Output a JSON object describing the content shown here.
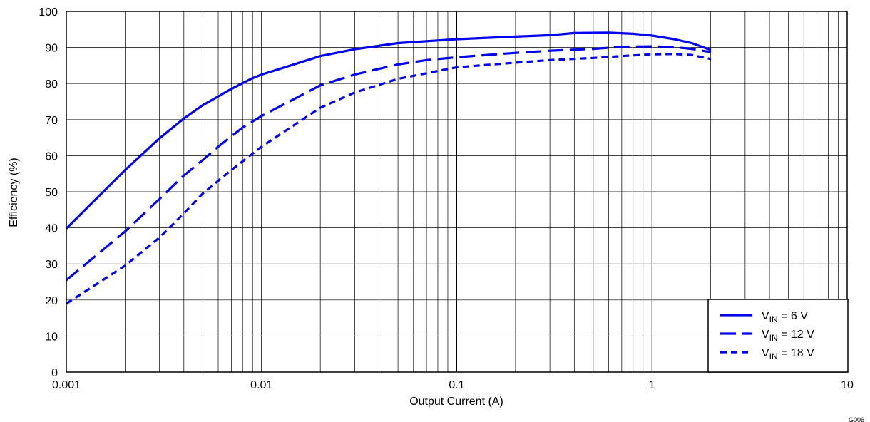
{
  "chart_data": {
    "type": "line",
    "title": "",
    "xlabel": "Output Current (A)",
    "ylabel": "Efficiency (%)",
    "xscale": "log",
    "xlim": [
      0.001,
      10
    ],
    "ylim": [
      0,
      100
    ],
    "grid": true,
    "legend_position": "bottom-right",
    "x_tick_labels": [
      "0.001",
      "0.01",
      "0.1",
      "1",
      "10"
    ],
    "y_tick_labels": [
      "0",
      "10",
      "20",
      "30",
      "40",
      "50",
      "60",
      "70",
      "80",
      "90",
      "100"
    ],
    "line_color": "#0000ee",
    "series": [
      {
        "legend_main": "V",
        "legend_sub": "IN",
        "legend_value": " =  6 V",
        "style": "solid",
        "x": [
          0.001,
          0.002,
          0.003,
          0.004,
          0.005,
          0.007,
          0.009,
          0.01,
          0.02,
          0.03,
          0.05,
          0.1,
          0.2,
          0.3,
          0.4,
          0.6,
          0.8,
          1.0,
          1.3,
          1.6,
          1.8,
          2.0
        ],
        "y": [
          39.8,
          56,
          64.8,
          70.3,
          74,
          78.5,
          81.5,
          82.5,
          87.6,
          89.5,
          91.2,
          92.3,
          93,
          93.4,
          94,
          94.1,
          93.8,
          93.3,
          92.3,
          91.2,
          90.2,
          89.3
        ]
      },
      {
        "legend_main": "V",
        "legend_sub": "IN",
        "legend_value": " =  12 V",
        "style": "long-dash",
        "x": [
          0.001,
          0.002,
          0.003,
          0.004,
          0.005,
          0.006,
          0.008,
          0.01,
          0.02,
          0.03,
          0.05,
          0.07,
          0.1,
          0.2,
          0.3,
          0.5,
          0.7,
          1.0,
          1.3,
          1.6,
          2.0
        ],
        "y": [
          25.5,
          39,
          48,
          54.5,
          58.8,
          62.5,
          67.8,
          71,
          79.5,
          82.5,
          85.3,
          86.5,
          87.3,
          88.5,
          89.1,
          89.6,
          90.2,
          90.3,
          90.1,
          89.6,
          88.7
        ]
      },
      {
        "legend_main": "V",
        "legend_sub": "IN",
        "legend_value": " =  18 V",
        "style": "short-dash",
        "x": [
          0.001,
          0.002,
          0.003,
          0.004,
          0.005,
          0.007,
          0.01,
          0.02,
          0.03,
          0.05,
          0.1,
          0.2,
          0.3,
          0.5,
          0.7,
          1.0,
          1.3,
          1.6,
          2.0
        ],
        "y": [
          19,
          29.5,
          37.3,
          44,
          49.5,
          56,
          62.5,
          73.3,
          77.5,
          81.3,
          84.5,
          85.8,
          86.5,
          87.1,
          87.6,
          88.1,
          88.2,
          87.9,
          86.8
        ]
      }
    ]
  },
  "figure_id": "G006"
}
